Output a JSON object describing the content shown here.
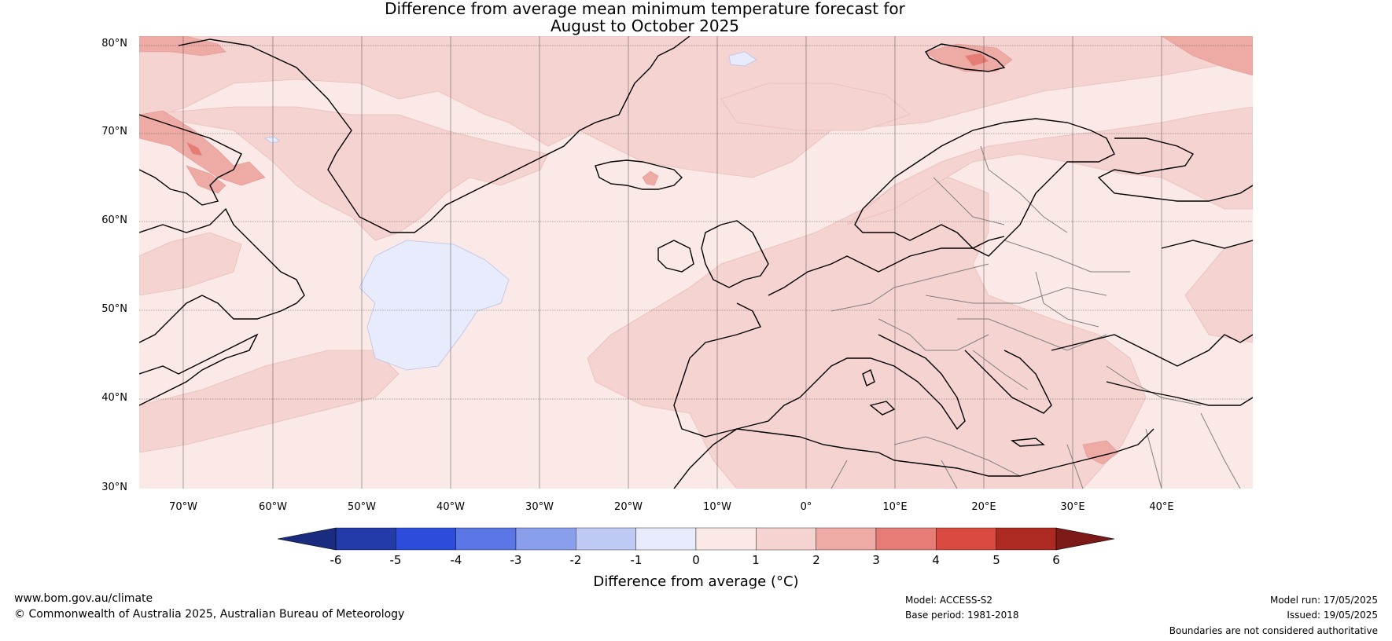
{
  "title_line1": "Difference from average mean minimum temperature forecast for",
  "title_line2": "August to October 2025",
  "lat_labels": [
    "80°N",
    "70°N",
    "60°N",
    "50°N",
    "40°N",
    "30°N"
  ],
  "lon_labels": [
    "70°W",
    "60°W",
    "50°W",
    "40°W",
    "30°W",
    "20°W",
    "10°W",
    "0°",
    "10°E",
    "20°E",
    "30°E",
    "40°E"
  ],
  "colorbar": {
    "label": "Difference from average (°C)",
    "ticks": [
      "-6",
      "-5",
      "-4",
      "-3",
      "-2",
      "-1",
      "0",
      "1",
      "2",
      "3",
      "4",
      "5",
      "6"
    ],
    "colors": [
      "#233ba8",
      "#2c4ddb",
      "#5b77e6",
      "#8a9fec",
      "#bfcaf4",
      "#e7ebfb",
      "#fbe9e7",
      "#f4d3d1",
      "#eeaaa5",
      "#e57d76",
      "#da4a40",
      "#ad2a23"
    ],
    "under_color": "#1a2c80",
    "over_color": "#7b1a16"
  },
  "footer": {
    "website": "www.bom.gov.au/climate",
    "copyright": "© Commonwealth of Australia 2025, Australian Bureau of Meteorology",
    "model": "Model: ACCESS-S2",
    "base_period": "Base period: 1981-2018",
    "model_run": "Model run: 17/05/2025",
    "issued": "Issued: 19/05/2025",
    "disclaimer": "Boundaries are not considered authoritative"
  },
  "map_colors": {
    "background": "#fbe9e7",
    "warm_1_2": "#f4d3d1",
    "warm_2_3": "#eeaaa5",
    "warm_3_4": "#e57d76",
    "cool_0_m1": "#e7ebfb",
    "coast": "#000000",
    "border": "#808080"
  }
}
